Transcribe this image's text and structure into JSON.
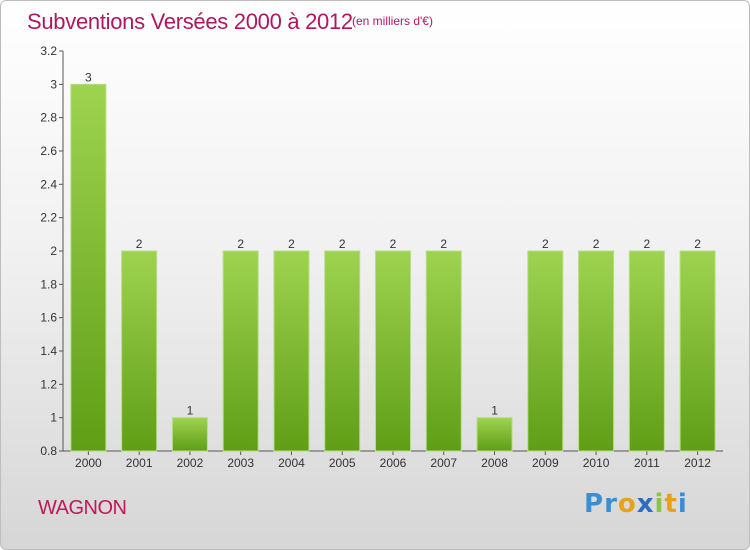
{
  "chart_data": {
    "type": "bar",
    "title": "Subventions Versées 2000 à 2012",
    "subtitle": "(en milliers d'€)",
    "categories": [
      "2000",
      "2001",
      "2002",
      "2003",
      "2004",
      "2005",
      "2006",
      "2007",
      "2008",
      "2009",
      "2010",
      "2011",
      "2012"
    ],
    "values": [
      3,
      2,
      1,
      2,
      2,
      2,
      2,
      2,
      1,
      2,
      2,
      2,
      2
    ],
    "data_labels": [
      "3",
      "2",
      "1",
      "2",
      "2",
      "2",
      "2",
      "2",
      "1",
      "2",
      "2",
      "2",
      "2"
    ],
    "ylim": [
      0.8,
      3.2
    ],
    "yticks": [
      "3.2",
      "3",
      "2.8",
      "2.6",
      "2.4",
      "2.2",
      "2",
      "1.8",
      "1.6",
      "1.4",
      "1.2",
      "1",
      "0.8"
    ],
    "xlabel": "",
    "ylabel": "",
    "bar_color": "#8cc63f",
    "bar_dark_color": "#5a9a14",
    "grid": false,
    "legend": "none"
  },
  "footer": {
    "commune": "WAGNON",
    "brand": "Proxiti",
    "brand_letters": [
      {
        "ch": "P",
        "color": "#3a8fd4"
      },
      {
        "ch": "r",
        "color": "#3a8fd4"
      },
      {
        "ch": "o",
        "color": "#e8a11b"
      },
      {
        "ch": "x",
        "color": "#2b6cc4"
      },
      {
        "ch": "i",
        "color": "#8cc63f"
      },
      {
        "ch": "t",
        "color": "#e8a11b"
      },
      {
        "ch": "i",
        "color": "#3a8fd4"
      }
    ]
  }
}
